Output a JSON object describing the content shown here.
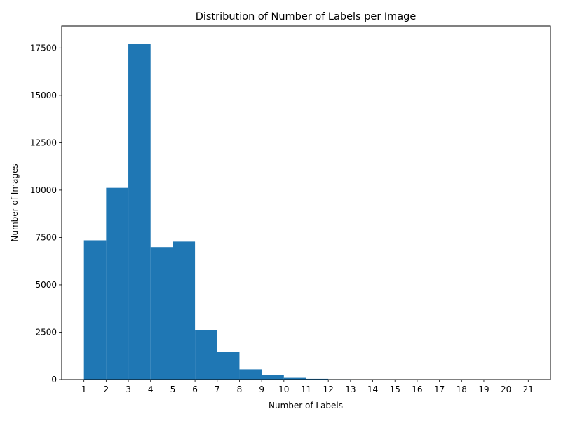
{
  "chart_data": {
    "type": "bar",
    "title": "Distribution of Number of Labels per Image",
    "xlabel": "Number of Labels",
    "ylabel": "Number of Images",
    "x_ticks": [
      "1",
      "2",
      "3",
      "4",
      "5",
      "6",
      "7",
      "8",
      "9",
      "10",
      "11",
      "12",
      "13",
      "14",
      "15",
      "16",
      "17",
      "18",
      "19",
      "20",
      "21"
    ],
    "y_ticks": [
      "0",
      "2500",
      "5000",
      "7500",
      "10000",
      "12500",
      "15000",
      "17500"
    ],
    "bins": [
      {
        "start": 1,
        "end": 2,
        "value": 7350
      },
      {
        "start": 2,
        "end": 3,
        "value": 10120
      },
      {
        "start": 3,
        "end": 4,
        "value": 17730
      },
      {
        "start": 4,
        "end": 5,
        "value": 6990
      },
      {
        "start": 5,
        "end": 6,
        "value": 7280
      },
      {
        "start": 6,
        "end": 7,
        "value": 2600
      },
      {
        "start": 7,
        "end": 8,
        "value": 1450
      },
      {
        "start": 8,
        "end": 9,
        "value": 540
      },
      {
        "start": 9,
        "end": 10,
        "value": 240
      },
      {
        "start": 10,
        "end": 11,
        "value": 90
      },
      {
        "start": 11,
        "end": 12,
        "value": 40
      },
      {
        "start": 12,
        "end": 13,
        "value": 20
      },
      {
        "start": 13,
        "end": 14,
        "value": 8
      },
      {
        "start": 14,
        "end": 15,
        "value": 4
      },
      {
        "start": 15,
        "end": 16,
        "value": 2
      },
      {
        "start": 16,
        "end": 17,
        "value": 1
      },
      {
        "start": 17,
        "end": 18,
        "value": 1
      },
      {
        "start": 18,
        "end": 19,
        "value": 0
      },
      {
        "start": 19,
        "end": 20,
        "value": 0
      },
      {
        "start": 20,
        "end": 21,
        "value": 1
      }
    ],
    "xlim": [
      0.0,
      22.0
    ],
    "ylim": [
      0,
      18660
    ],
    "bar_color": "#1f77b4",
    "grid": false,
    "legend": "none"
  }
}
